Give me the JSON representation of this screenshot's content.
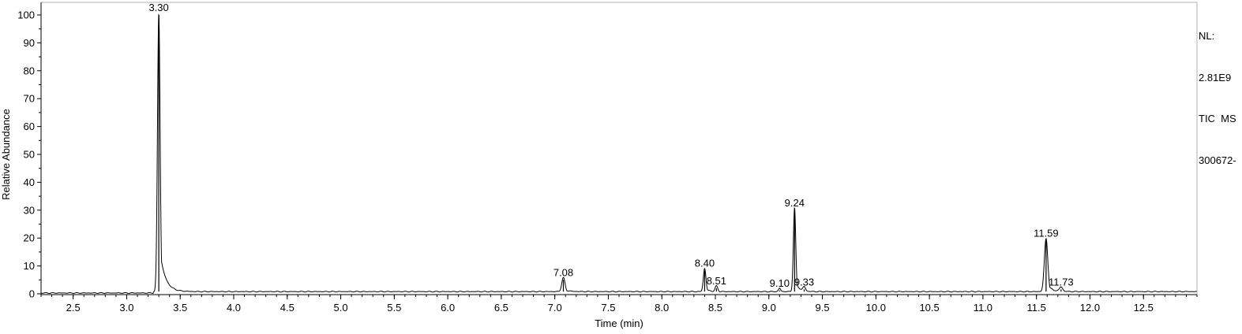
{
  "chart_data": {
    "type": "line",
    "xlabel": "Time (min)",
    "ylabel": "Relative Abundance",
    "xlim": [
      2.2,
      13.0
    ],
    "ylim": [
      0,
      100
    ],
    "x_ticks": [
      "2.5",
      "3.0",
      "3.5",
      "4.0",
      "4.5",
      "5.0",
      "5.5",
      "6.0",
      "6.5",
      "7.0",
      "7.5",
      "8.0",
      "8.5",
      "9.0",
      "9.5",
      "10.0",
      "10.5",
      "11.0",
      "11.5",
      "12.0",
      "12.5"
    ],
    "y_ticks": [
      "0",
      "10",
      "20",
      "30",
      "40",
      "50",
      "60",
      "70",
      "80",
      "90",
      "100"
    ],
    "grid": false,
    "baseline": 0.8,
    "peaks": [
      {
        "label": "3.30",
        "x": 3.3,
        "y": 100.0,
        "width": 0.012,
        "tail": 0.05
      },
      {
        "label": "7.08",
        "x": 7.08,
        "y": 5.0,
        "width": 0.015,
        "tail": 0.04
      },
      {
        "label": "8.40",
        "x": 8.4,
        "y": 8.3,
        "width": 0.012,
        "tail": 0.03
      },
      {
        "label": "8.51",
        "x": 8.51,
        "y": 2.0,
        "width": 0.012,
        "tail": 0.02
      },
      {
        "label": "9.10",
        "x": 9.1,
        "y": 1.2,
        "width": 0.01,
        "tail": 0.02
      },
      {
        "label": "9.24",
        "x": 9.24,
        "y": 30.0,
        "width": 0.011,
        "tail": 0.03
      },
      {
        "label": "9.33",
        "x": 9.33,
        "y": 1.6,
        "width": 0.012,
        "tail": 0.03
      },
      {
        "label": "11.59",
        "x": 11.59,
        "y": 19.0,
        "width": 0.016,
        "tail": 0.04
      },
      {
        "label": "11.73",
        "x": 11.73,
        "y": 1.6,
        "width": 0.015,
        "tail": 0.03
      }
    ],
    "trace_color": "#000000"
  },
  "info": {
    "line1": "NL:",
    "line2": "2.81E9",
    "line3": "TIC  MS",
    "line4": "300672-"
  }
}
